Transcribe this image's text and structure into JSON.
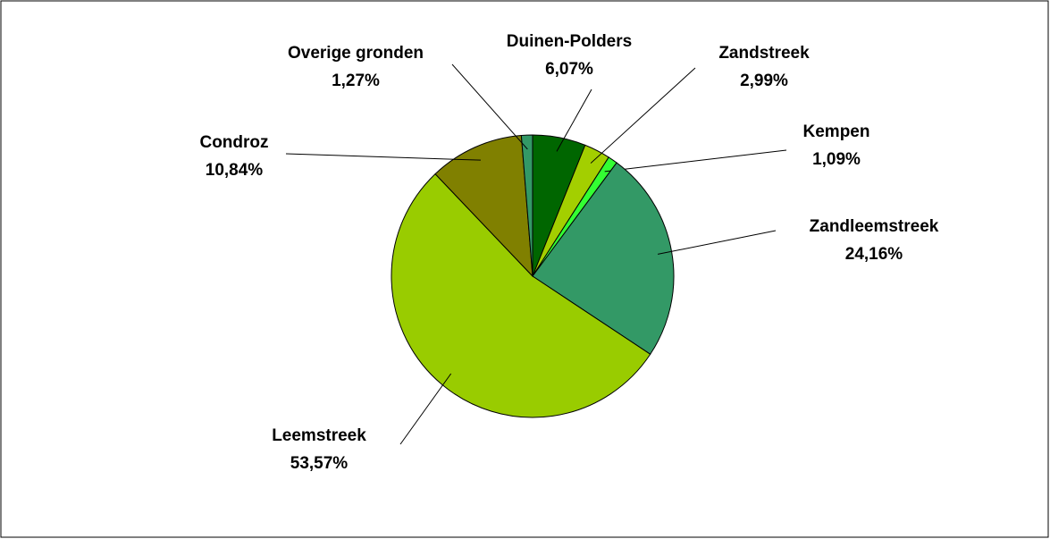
{
  "chart_data": {
    "type": "pie",
    "categories": [
      "Duinen-Polders",
      "Zandstreek",
      "Kempen",
      "Zandleemstreek",
      "Leemstreek",
      "Condroz",
      "Overige gronden"
    ],
    "values": [
      6.07,
      2.99,
      1.09,
      24.16,
      53.57,
      10.84,
      1.27
    ],
    "value_labels": [
      "6,07%",
      "2,99%",
      "1,09%",
      "24,16%",
      "53,57%",
      "10,84%",
      "1,27%"
    ],
    "colors": [
      "#006600",
      "#a3cf00",
      "#33ff33",
      "#339966",
      "#99cc00",
      "#808000",
      "#339966"
    ]
  }
}
